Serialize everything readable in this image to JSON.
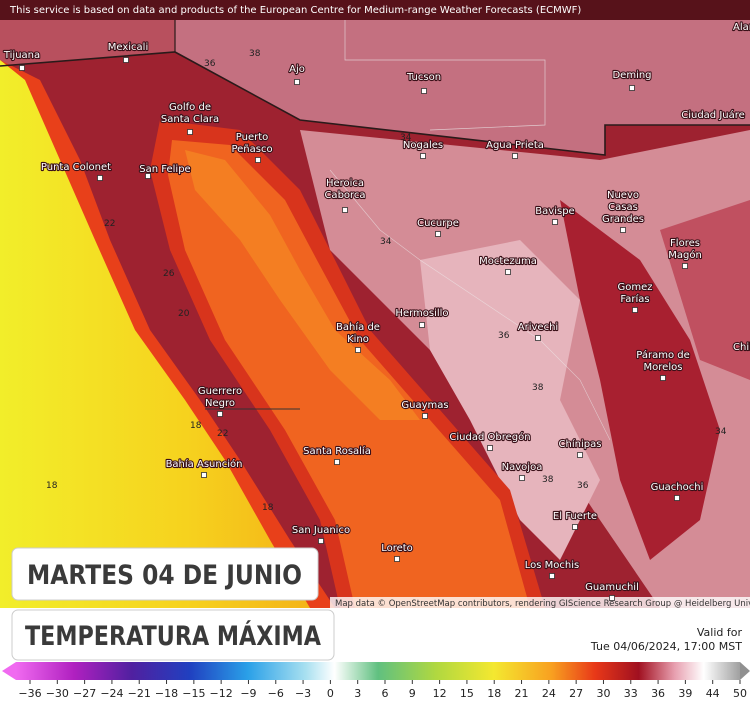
{
  "attribution_top": "This service is based on data and products of the European Centre for Medium-range Weather Forecasts (ECMWF)",
  "attribution_bottom": "Map data © OpenStreetMap contributors, rendering GIScience Research Group @ Heidelberg University",
  "title": {
    "date": "MARTES 04 DE JUNIO",
    "variable": "TEMPERATURA MÁXIMA"
  },
  "valid": {
    "label": "Valid for",
    "time": "Tue 04/06/2024, 17:00 MST"
  },
  "legend": {
    "labels": [
      "−36",
      "−30",
      "−27",
      "−24",
      "−21",
      "−18",
      "−15",
      "−12",
      "−9",
      "−6",
      "−3",
      "0",
      "3",
      "6",
      "9",
      "12",
      "15",
      "18",
      "21",
      "24",
      "27",
      "30",
      "33",
      "36",
      "39",
      "44",
      "50"
    ]
  },
  "places": [
    [
      "Tijuana"
    ],
    [
      "Mexicali"
    ],
    [
      "Alam"
    ],
    [
      "Ajo"
    ],
    [
      "Tucson"
    ],
    [
      "Deming"
    ],
    [
      "Ciudad Juáre"
    ],
    [
      "Golfo de",
      "Santa Clara"
    ],
    [
      "Puerto",
      "Peñasco"
    ],
    [
      "Nogales"
    ],
    [
      "Agua Prieta"
    ],
    [
      "Punta Colonet"
    ],
    [
      "San Felipe"
    ],
    [
      "Heroica",
      "Caborca"
    ],
    [
      "Nuevo",
      "Casas",
      "Grandes"
    ],
    [
      "Bavispe"
    ],
    [
      "Cucurpe"
    ],
    [
      "Flores",
      "Magón"
    ],
    [
      "Moctezuma"
    ],
    [
      "Gomez",
      "Farías"
    ],
    [
      "Hermosillo"
    ],
    [
      "Bahía de",
      "Kino"
    ],
    [
      "Arivechi"
    ],
    [
      "Chihu"
    ],
    [
      "Páramo de",
      "Morelos"
    ],
    [
      "Guerrero",
      "Negro"
    ],
    [
      "Guaymas"
    ],
    [
      "Ciudad Obregón"
    ],
    [
      "Chínipas"
    ],
    [
      "Bahía Asunción"
    ],
    [
      "Santa Rosalía"
    ],
    [
      "Navojoa"
    ],
    [
      "Guachochi"
    ],
    [
      "El Fuerte"
    ],
    [
      "San Juanico"
    ],
    [
      "Loreto"
    ],
    [
      "Los Mochis"
    ],
    [
      "Guamuchil"
    ]
  ],
  "contour_labels": [
    "38",
    "36",
    "34",
    "34",
    "22",
    "26",
    "20",
    "18",
    "22",
    "18",
    "18",
    "36",
    "38",
    "36",
    "38",
    "34"
  ]
}
